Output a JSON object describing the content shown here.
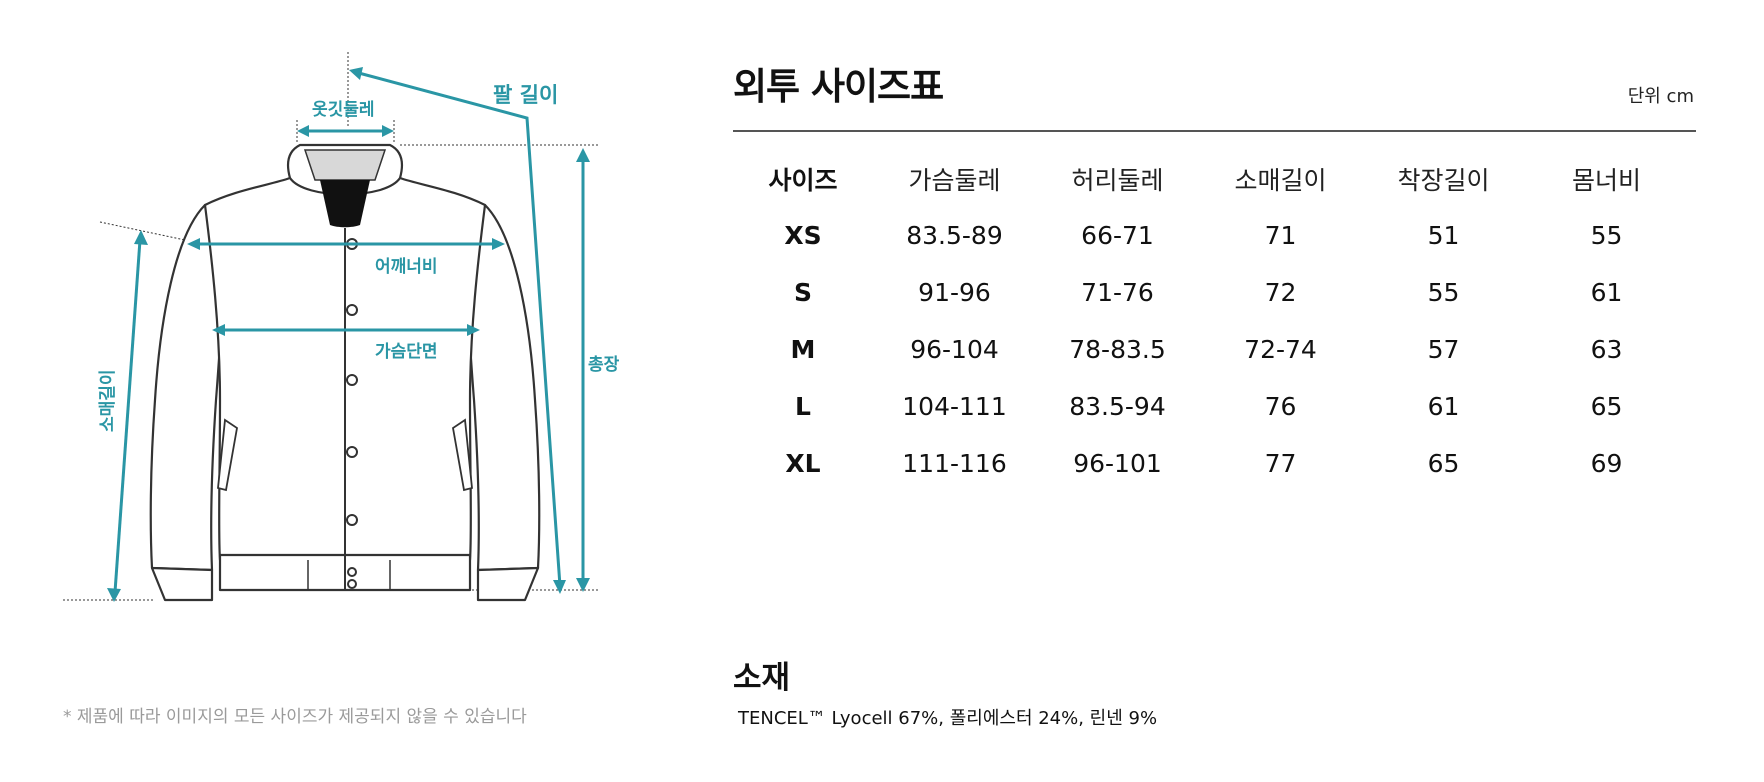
{
  "diagram": {
    "labels": {
      "arm_length": "팔 길이",
      "collar": "옷깃둘레",
      "shoulder": "어깨너비",
      "chest": "가슴단면",
      "total_length": "총장",
      "sleeve": "소매길이"
    },
    "accent_color": "#2a96a5"
  },
  "footnote": "* 제품에 따라 이미지의 모든 사이즈가 제공되지 않을 수 있습니다",
  "title": "외투 사이즈표",
  "unit": "단위 cm",
  "table": {
    "headers": [
      "사이즈",
      "가슴둘레",
      "허리둘레",
      "소매길이",
      "착장길이",
      "몸너비"
    ],
    "rows": [
      [
        "XS",
        "83.5-89",
        "66-71",
        "71",
        "51",
        "55"
      ],
      [
        "S",
        "91-96",
        "71-76",
        "72",
        "55",
        "61"
      ],
      [
        "M",
        "96-104",
        "78-83.5",
        "72-74",
        "57",
        "63"
      ],
      [
        "L",
        "104-111",
        "83.5-94",
        "76",
        "61",
        "65"
      ],
      [
        "XL",
        "111-116",
        "96-101",
        "77",
        "65",
        "69"
      ]
    ]
  },
  "material": {
    "title": "소재",
    "text": "TENCEL™ Lyocell 67%, 폴리에스터 24%, 린넨 9%"
  }
}
